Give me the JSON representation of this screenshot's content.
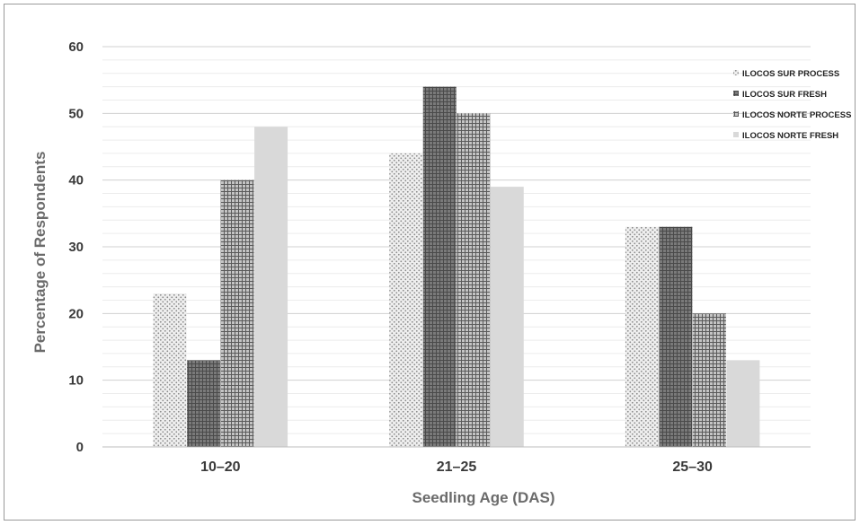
{
  "chart_data": {
    "type": "bar",
    "title": "",
    "xlabel": "Seedling Age (DAS)",
    "ylabel": "Percentage of Respondents",
    "categories": [
      "10–20",
      "21–25",
      "25–30"
    ],
    "ylim": [
      0,
      60
    ],
    "y_ticks": [
      "0",
      "10",
      "20",
      "30",
      "40",
      "50",
      "60"
    ],
    "grid": true,
    "legend_position": "top-right",
    "series": [
      {
        "name": "ILOCOS SUR PROCESS",
        "values": [
          23,
          44,
          33
        ],
        "pattern": "dots",
        "color": "#d9d9d9"
      },
      {
        "name": "ILOCOS SUR FRESH",
        "values": [
          13,
          54,
          33
        ],
        "pattern": "dense-grid",
        "color": "#6d6d6d"
      },
      {
        "name": "ILOCOS NORTE PROCESS",
        "values": [
          40,
          50,
          20
        ],
        "pattern": "grid",
        "color": "#8f8f8f"
      },
      {
        "name": "ILOCOS NORTE FRESH",
        "values": [
          48,
          39,
          13
        ],
        "pattern": "solid",
        "color": "#d9d9d9"
      }
    ]
  }
}
